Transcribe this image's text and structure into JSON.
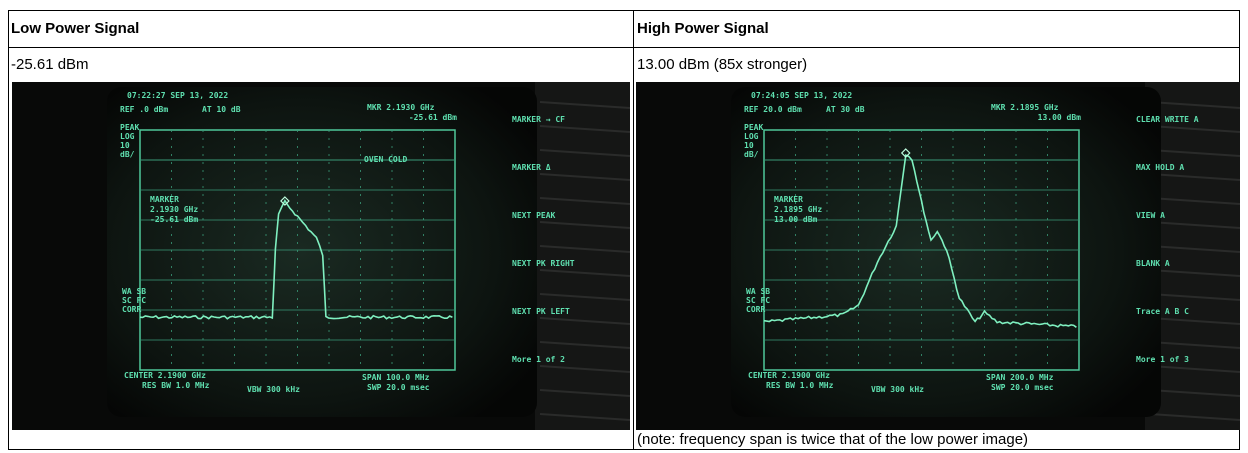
{
  "columns": [
    {
      "heading": "Low Power Signal",
      "reading": "-25.61 dBm",
      "screen": {
        "timestamp": "07:22:27 SEP 13, 2022",
        "ref": "REF .0 dBm",
        "atten": "AT 10 dB",
        "mkr": "MKR 2.1930 GHz",
        "mkr_value": "-25.61 dBm",
        "scale": [
          "PEAK",
          "LOG",
          "10",
          "dB/"
        ],
        "status": [
          "WA SB",
          "SC FC",
          "CORR"
        ],
        "banner": "OVEN COLD",
        "marker": [
          "MARKER",
          "2.1930 GHz",
          "-25.61 dBm"
        ],
        "softkeys": [
          "MARKER → CF",
          "MARKER Δ",
          "NEXT PEAK",
          "NEXT PK RIGHT",
          "NEXT PK LEFT",
          "More 1 of 2"
        ],
        "center": "CENTER 2.1900 GHz",
        "res_bw": "RES BW 1.0 MHz",
        "vbw": "VBW 300 kHz",
        "span": "SPAN 100.0 MHz",
        "swp": "SWP 20.0 msec"
      }
    },
    {
      "heading": "High Power Signal",
      "reading": "13.00 dBm (85x stronger)",
      "note": "(note: frequency span is twice that of the low power image)",
      "screen": {
        "timestamp": "07:24:05 SEP 13, 2022",
        "ref": "REF 20.0 dBm",
        "atten": "AT 30 dB",
        "mkr": "MKR 2.1895 GHz",
        "mkr_value": "13.00 dBm",
        "scale": [
          "PEAK",
          "LOG",
          "10",
          "dB/"
        ],
        "status": [
          "WA SB",
          "SC FC",
          "CORR"
        ],
        "marker": [
          "MARKER",
          "2.1895 GHz",
          "13.00 dBm"
        ],
        "softkeys": [
          "CLEAR WRITE A",
          "MAX HOLD A",
          "VIEW A",
          "BLANK A",
          "Trace A B C",
          "More 1 of 3"
        ],
        "center": "CENTER 2.1900 GHz",
        "res_bw": "RES BW 1.0 MHz",
        "vbw": "VBW 300 kHz",
        "span": "SPAN 200.0 MHz",
        "swp": "SWP 20.0 msec"
      }
    }
  ]
}
